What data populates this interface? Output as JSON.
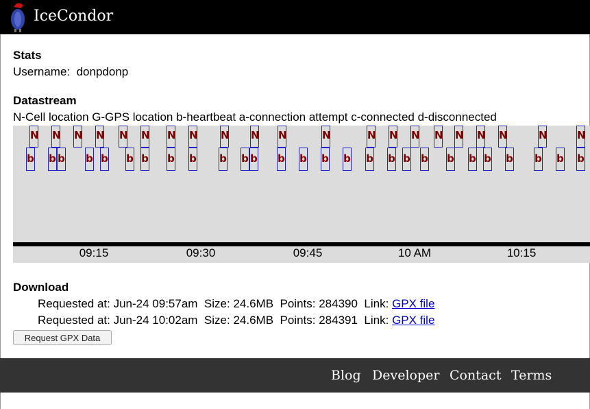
{
  "app": {
    "title": "IceCondor"
  },
  "stats": {
    "heading": "Stats",
    "username_label": "Username:",
    "username": "donpdonp"
  },
  "datastream": {
    "heading": "Datastream",
    "legend": "N-Cell location G-GPS location b-heartbeat a-connection attempt c-connected d-disconnected",
    "n_label": "N",
    "b_label": "b",
    "ticks": [
      "09:15",
      "09:30",
      "09:45",
      "10 AM",
      "10:15"
    ]
  },
  "download": {
    "heading": "Download",
    "rows": [
      {
        "requested_label": "Requested at:",
        "requested": "Jun-24 09:57am",
        "size_label": "Size:",
        "size": "24.6MB",
        "points_label": "Points:",
        "points": "284390",
        "link_label": "Link:",
        "link_text": "GPX file"
      },
      {
        "requested_label": "Requested at:",
        "requested": "Jun-24 10:02am",
        "size_label": "Size:",
        "size": "24.6MB",
        "points_label": "Points:",
        "points": "284391",
        "link_label": "Link:",
        "link_text": "GPX file"
      }
    ],
    "button_label": "Request GPX Data"
  },
  "footer": {
    "links": [
      "Blog",
      "Developer",
      "Contact",
      "Terms"
    ]
  },
  "colors": {
    "header_bg": "#000000",
    "footer_bg": "#333333",
    "mark_text": "#800000",
    "mark_border": "#2222cc",
    "stream_bg": "#dcdcdc"
  }
}
